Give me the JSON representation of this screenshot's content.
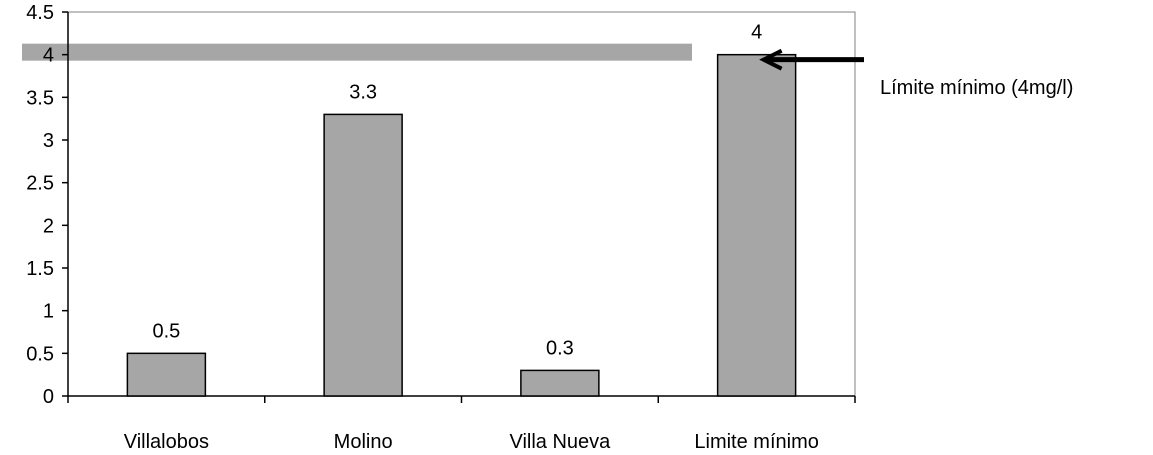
{
  "chart_data": {
    "type": "bar",
    "categories": [
      "Villalobos",
      "Molino",
      "Villa Nueva",
      "Limite mínimo"
    ],
    "values": [
      0.5,
      3.3,
      0.3,
      4
    ],
    "value_labels": [
      "0.5",
      "3.3",
      "0.3",
      "4"
    ],
    "ylim": [
      0,
      4.5
    ],
    "yticks": [
      0,
      0.5,
      1,
      1.5,
      2,
      2.5,
      3,
      3.5,
      4,
      4.5
    ],
    "ytick_labels": [
      "0",
      "0.5",
      "1",
      "1.5",
      "2",
      "2.5",
      "3",
      "3.5",
      "4",
      "4.5"
    ],
    "title": "",
    "xlabel": "",
    "ylabel": "",
    "grid": false,
    "bar_color": "#a6a6a6",
    "reference_band": {
      "value": 4
    },
    "reference_band_color": "#a6a6a6",
    "annotation": {
      "text": "Límite mínimo (4mg/l)",
      "target_category": "Limite mínimo",
      "target_value": 4
    }
  }
}
